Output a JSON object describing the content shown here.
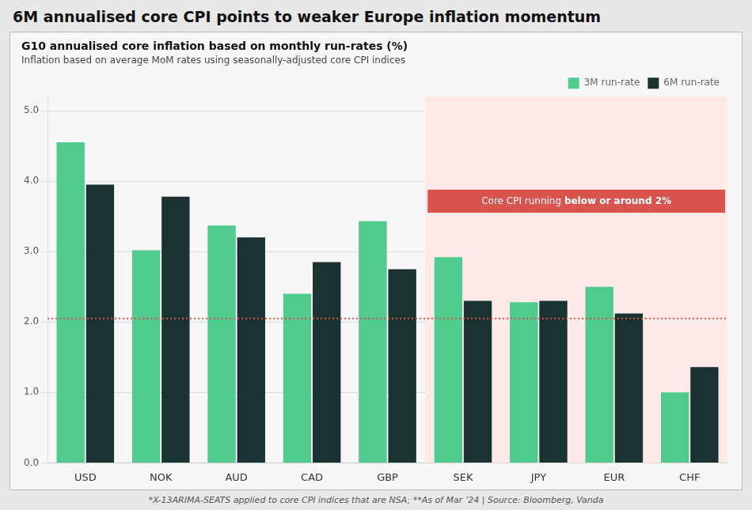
{
  "chart_data": {
    "type": "bar",
    "title": "6M annualised core CPI points to weaker Europe inflation momentum",
    "subtitle": [
      "G10 annualised core inflation based on monthly run-rates (%)",
      "Inflation based on average MoM rates using seasonally-adjusted core CPI indices"
    ],
    "footnote": "*X-13ARIMA-SEATS applied to core CPI indices that are NSA; **As of Mar ’24 | Source: Bloomberg, Vanda",
    "categories": [
      "USD",
      "NOK",
      "AUD",
      "CAD",
      "GBP",
      "SEK",
      "JPY",
      "EUR",
      "CHF"
    ],
    "series": [
      {
        "name": "3M run-rate",
        "color": "#4ecb8d",
        "values": [
          4.55,
          3.02,
          3.37,
          2.4,
          3.43,
          2.92,
          2.28,
          2.5,
          1.0
        ]
      },
      {
        "name": "6M run-rate",
        "color": "#1b3330",
        "values": [
          3.95,
          3.78,
          3.2,
          2.85,
          2.75,
          2.3,
          2.3,
          2.12,
          1.36
        ]
      }
    ],
    "reference_line": {
      "value": 2.05,
      "color": "#d9534f"
    },
    "highlight": {
      "start": "SEK",
      "color": "#fce9e8"
    },
    "annotation": {
      "text": "Core CPI running ",
      "bold_text": "below or around 2%",
      "color": "#d9534f"
    },
    "ylim": [
      0.0,
      5.2
    ],
    "yticks": [
      {
        "value": 0,
        "label": "0.0"
      },
      {
        "value": 1,
        "label": "1.0"
      },
      {
        "value": 2,
        "label": "2.0"
      },
      {
        "value": 3,
        "label": "3.0"
      },
      {
        "value": 4,
        "label": "4.0"
      },
      {
        "value": 5,
        "label": "5.0"
      }
    ],
    "grid": true,
    "legend": "upper right"
  }
}
